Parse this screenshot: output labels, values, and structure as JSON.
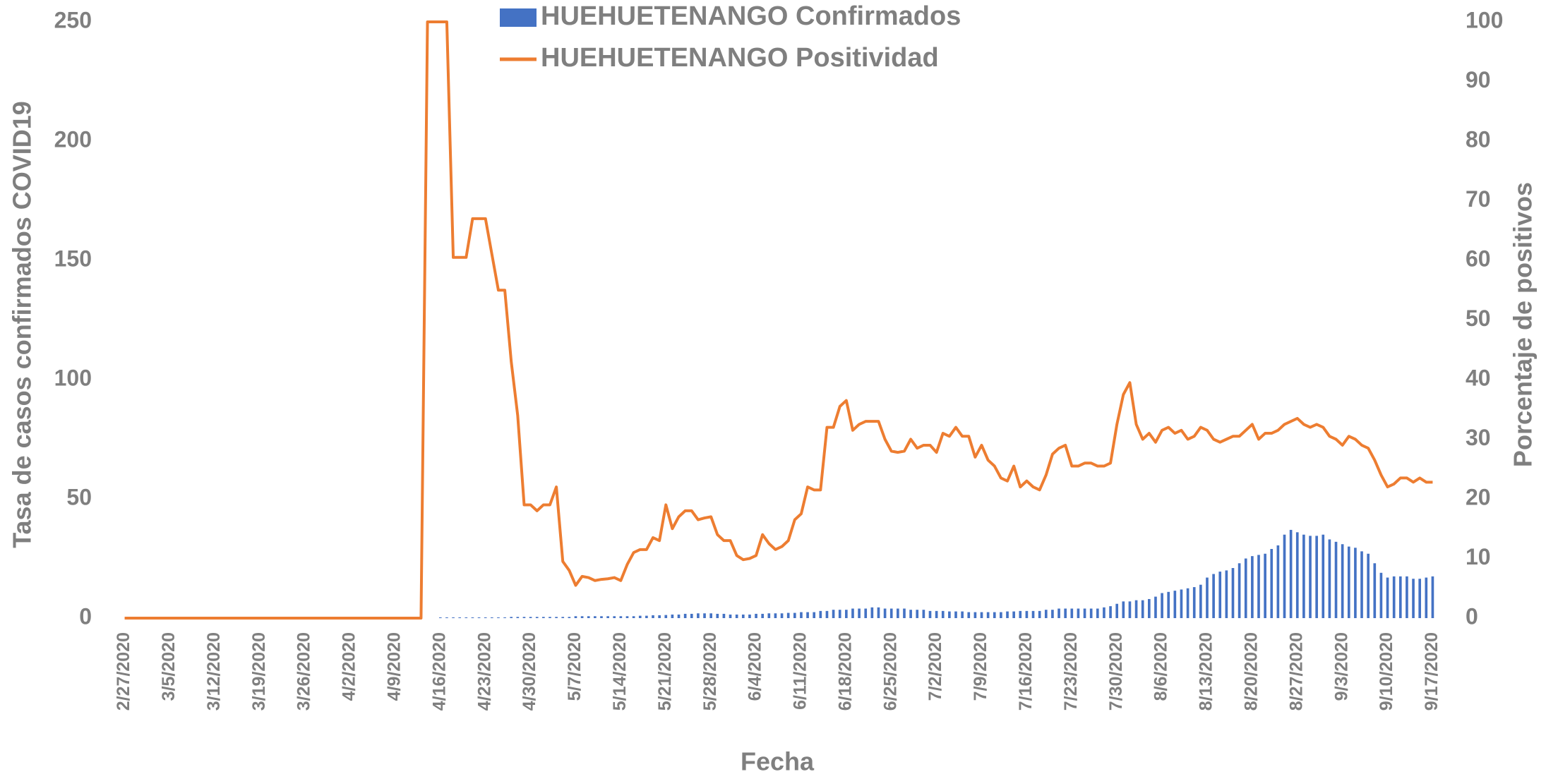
{
  "chart_data": {
    "type": "bar_line",
    "x_label": "Fecha",
    "y_label": "Tasa de casos confirmados COVID19",
    "y2_label": "Porcentaje de positivos",
    "grid": false,
    "ylim": [
      0,
      250
    ],
    "yticks": [
      0,
      50,
      100,
      150,
      200,
      250
    ],
    "y2lim": [
      0,
      100
    ],
    "y2ticks": [
      0,
      10,
      20,
      30,
      40,
      50,
      60,
      70,
      80,
      90,
      100
    ],
    "categories": [
      "2/27/2020",
      null,
      null,
      null,
      null,
      null,
      null,
      "3/5/2020",
      null,
      null,
      null,
      null,
      null,
      null,
      "3/12/2020",
      null,
      null,
      null,
      null,
      null,
      null,
      "3/19/2020",
      null,
      null,
      null,
      null,
      null,
      null,
      "3/26/2020",
      null,
      null,
      null,
      null,
      null,
      null,
      "4/2/2020",
      null,
      null,
      null,
      null,
      null,
      null,
      "4/9/2020",
      null,
      null,
      null,
      null,
      null,
      null,
      "4/16/2020",
      null,
      null,
      null,
      null,
      null,
      null,
      "4/23/2020",
      null,
      null,
      null,
      null,
      null,
      null,
      "4/30/2020",
      null,
      null,
      null,
      null,
      null,
      null,
      "5/7/2020",
      null,
      null,
      null,
      null,
      null,
      null,
      "5/14/2020",
      null,
      null,
      null,
      null,
      null,
      null,
      "5/21/2020",
      null,
      null,
      null,
      null,
      null,
      null,
      "5/28/2020",
      null,
      null,
      null,
      null,
      null,
      null,
      "6/4/2020",
      null,
      null,
      null,
      null,
      null,
      null,
      "6/11/2020",
      null,
      null,
      null,
      null,
      null,
      null,
      "6/18/2020",
      null,
      null,
      null,
      null,
      null,
      null,
      "6/25/2020",
      null,
      null,
      null,
      null,
      null,
      null,
      "7/2/2020",
      null,
      null,
      null,
      null,
      null,
      null,
      "7/9/2020",
      null,
      null,
      null,
      null,
      null,
      null,
      "7/16/2020",
      null,
      null,
      null,
      null,
      null,
      null,
      "7/23/2020",
      null,
      null,
      null,
      null,
      null,
      null,
      "7/30/2020",
      null,
      null,
      null,
      null,
      null,
      null,
      "8/6/2020",
      null,
      null,
      null,
      null,
      null,
      null,
      "8/13/2020",
      null,
      null,
      null,
      null,
      null,
      null,
      "8/20/2020",
      null,
      null,
      null,
      null,
      null,
      null,
      "8/27/2020",
      null,
      null,
      null,
      null,
      null,
      null,
      "9/3/2020",
      null,
      null,
      null,
      null,
      null,
      null,
      "9/10/2020",
      null,
      null,
      null,
      null,
      null,
      null,
      "9/17/2020"
    ],
    "series": [
      {
        "name": "HUEHUETENANGO Confirmados",
        "kind": "bar",
        "color": "#4472c4",
        "values": [
          0,
          0,
          0,
          0,
          0,
          0,
          0,
          0,
          0,
          0,
          0,
          0,
          0,
          0,
          0,
          0,
          0,
          0,
          0,
          0,
          0,
          0,
          0,
          0,
          0,
          0,
          0,
          0,
          0,
          0,
          0,
          0,
          0,
          0,
          0,
          0,
          0,
          0,
          0,
          0,
          0,
          0,
          0,
          0,
          0,
          0,
          0,
          0,
          0,
          0.3,
          0.3,
          0.3,
          0.3,
          0.3,
          0.3,
          0.3,
          0.3,
          0.3,
          0.3,
          0.3,
          0.5,
          0.5,
          0.5,
          0.5,
          0.5,
          0.5,
          0.5,
          0.5,
          0.5,
          0.5,
          0.8,
          0.8,
          0.8,
          0.8,
          0.8,
          0.8,
          0.8,
          0.8,
          0.8,
          0.8,
          1,
          1,
          1.2,
          1.2,
          1.3,
          1.5,
          1.5,
          1.8,
          1.8,
          2,
          2,
          2,
          1.8,
          1.8,
          1.5,
          1.5,
          1.5,
          1.5,
          1.8,
          1.8,
          2,
          2,
          2,
          2.2,
          2.2,
          2.5,
          2.5,
          2.5,
          3,
          3,
          3.5,
          3.5,
          3.5,
          4,
          4,
          4,
          4.5,
          4.5,
          4,
          4,
          4,
          4,
          3.5,
          3.5,
          3.5,
          3,
          3,
          3,
          2.8,
          2.8,
          2.8,
          2.5,
          2.5,
          2.5,
          2.5,
          2.5,
          2.5,
          2.8,
          2.8,
          3,
          3,
          3,
          3,
          3.5,
          3.5,
          4,
          4,
          4,
          4,
          4,
          4,
          4,
          4.5,
          5,
          6,
          7,
          7,
          7.5,
          7.5,
          8,
          9,
          10.5,
          11,
          11.5,
          12,
          12.5,
          13,
          14,
          17,
          18.5,
          19.5,
          20,
          21,
          23,
          25,
          26,
          26.5,
          27,
          29,
          30.5,
          35,
          37,
          36,
          35,
          34.5,
          34.5,
          35,
          33,
          32,
          31,
          30,
          29.5,
          28,
          27,
          23,
          19,
          17,
          17.5,
          17.5,
          17.5,
          16.5,
          16.5,
          17,
          17.5
        ]
      },
      {
        "name": "HUEHUETENANGO Positividad",
        "kind": "line",
        "axis": "y2",
        "color": "#ed7d31",
        "values": [
          0,
          0,
          0,
          0,
          0,
          0,
          0,
          0,
          0,
          0,
          0,
          0,
          0,
          0,
          0,
          0,
          0,
          0,
          0,
          0,
          0,
          0,
          0,
          0,
          0,
          0,
          0,
          0,
          0,
          0,
          0,
          0,
          0,
          0,
          0,
          0,
          0,
          0,
          0,
          0,
          0,
          0,
          0,
          0,
          0,
          0,
          0,
          100,
          100,
          100,
          100,
          60.5,
          60.5,
          60.5,
          67,
          67,
          67,
          61,
          55,
          55,
          43,
          34,
          19,
          19,
          18,
          19,
          19,
          22,
          9.5,
          8,
          5.5,
          7,
          6.8,
          6.3,
          6.5,
          6.6,
          6.8,
          6.3,
          9,
          11,
          11.5,
          11.5,
          13.5,
          13,
          19,
          15,
          17,
          18,
          18,
          16.5,
          16.8,
          17,
          14,
          13,
          13,
          10.5,
          9.8,
          10,
          10.5,
          14,
          12.5,
          11.5,
          12,
          13,
          16.5,
          17.5,
          22,
          21.5,
          21.5,
          32,
          32,
          35.5,
          36.5,
          31.5,
          32.5,
          33,
          33,
          33,
          30,
          28,
          27.8,
          28,
          30,
          28.5,
          29,
          29,
          27.8,
          31,
          30.5,
          32,
          30.5,
          30.5,
          27,
          29,
          26.5,
          25.5,
          23.5,
          23,
          25.5,
          22,
          23,
          22,
          21.5,
          24,
          27.5,
          28.5,
          29,
          25.5,
          25.5,
          26,
          26,
          25.5,
          25.5,
          26,
          32.5,
          37.5,
          39.5,
          32.5,
          30,
          31,
          29.5,
          31.5,
          32,
          31,
          31.5,
          30,
          30.5,
          32,
          31.5,
          30,
          29.5,
          30,
          30.5,
          30.5,
          31.5,
          32.5,
          30,
          31,
          31,
          31.5,
          32.5,
          33,
          33.5,
          32.5,
          32,
          32.5,
          32,
          30.5,
          30,
          29,
          30.5,
          30,
          29,
          28.5,
          26.5,
          24,
          22,
          22.5,
          23.5,
          23.5,
          22.8,
          23.5,
          22.8,
          22.8
        ]
      }
    ]
  }
}
